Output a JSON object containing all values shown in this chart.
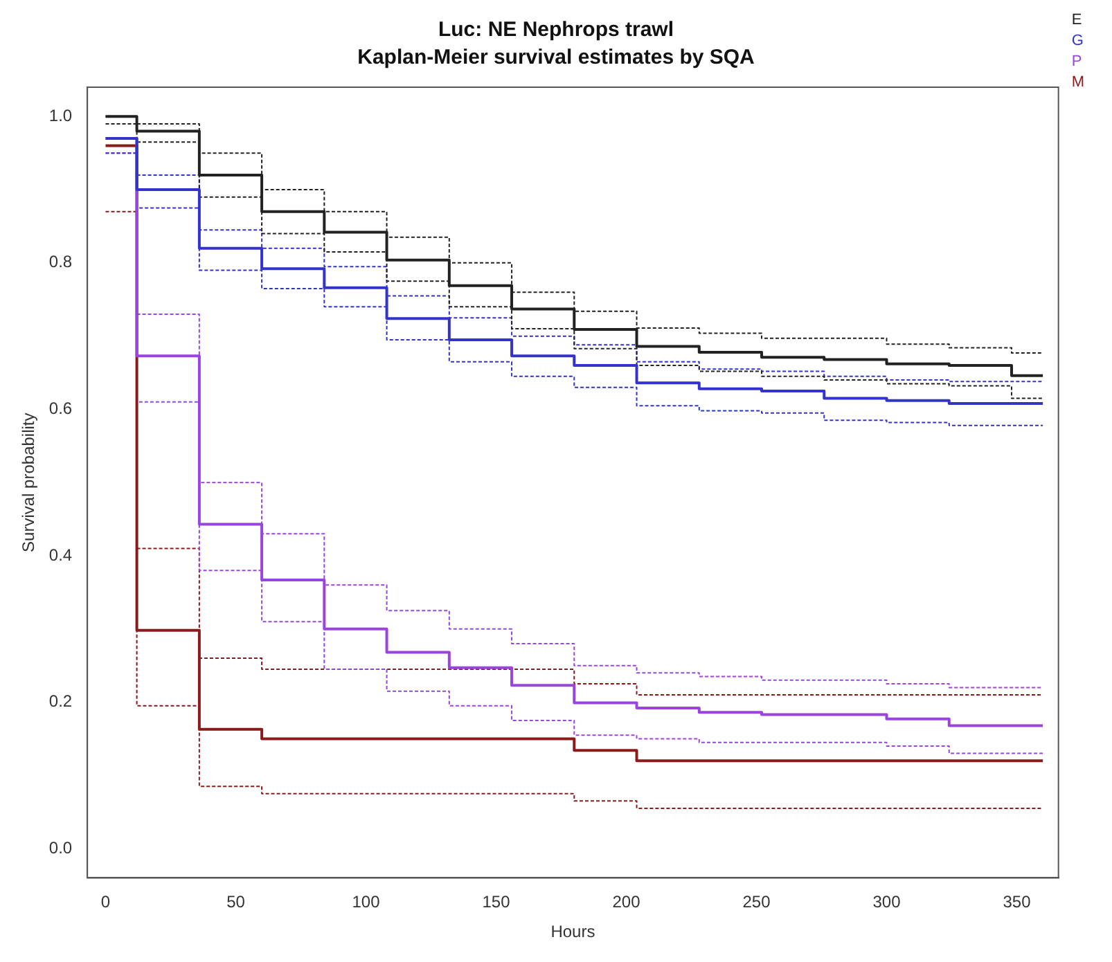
{
  "chart_data": {
    "type": "step",
    "title": "Luc: NE Nephrops trawl",
    "subtitle": "Kaplan-Meier survival estimates by SQA",
    "xlabel": "Hours",
    "ylabel": "Survival probability",
    "x": [
      0,
      12,
      36,
      60,
      84,
      108,
      132,
      156,
      180,
      204,
      228,
      252,
      276,
      300,
      324,
      348,
      360
    ],
    "xlim": [
      -7,
      366
    ],
    "xticks": [
      0,
      50,
      100,
      150,
      200,
      250,
      300,
      350
    ],
    "ylim": [
      -0.04,
      1.04
    ],
    "yticks": [
      {
        "value": 0,
        "label": "0.0"
      },
      {
        "value": 0.2,
        "label": "0.2"
      },
      {
        "value": 0.4,
        "label": "0.4"
      },
      {
        "value": 0.6,
        "label": "0.6"
      },
      {
        "value": 0.8,
        "label": "0.8"
      },
      {
        "value": 1,
        "label": "1.0"
      }
    ],
    "legend": "top right",
    "grid": false,
    "series": [
      {
        "name": "E",
        "color": "#222222",
        "values": [
          1.0,
          0.98,
          0.92,
          0.87,
          0.842,
          0.804,
          0.769,
          0.737,
          0.709,
          0.686,
          0.678,
          0.671,
          0.668,
          0.662,
          0.66,
          0.646,
          0.646
        ]
      },
      {
        "name": "G",
        "color": "#3333cc",
        "values": [
          0.97,
          0.9,
          0.82,
          0.792,
          0.766,
          0.724,
          0.695,
          0.673,
          0.66,
          0.636,
          0.628,
          0.625,
          0.615,
          0.612,
          0.608,
          0.608,
          0.608
        ]
      },
      {
        "name": "P",
        "color": "#9944dd",
        "values": [
          0.97,
          0.673,
          0.443,
          0.367,
          0.3,
          0.268,
          0.247,
          0.223,
          0.199,
          0.192,
          0.186,
          0.183,
          0.183,
          0.177,
          0.168,
          0.168,
          0.168
        ]
      },
      {
        "name": "M",
        "color": "#8b1a1a",
        "values": [
          0.96,
          0.298,
          0.163,
          0.15,
          0.15,
          0.15,
          0.15,
          0.15,
          0.134,
          0.12,
          0.12,
          0.12,
          0.12,
          0.12,
          0.12,
          0.12,
          0.12
        ]
      },
      {
        "color": "#222222",
        "line_style": "dashed",
        "values": [
          1.0,
          0.99,
          0.95,
          0.9,
          0.87,
          0.835,
          0.8,
          0.76,
          0.734,
          0.711,
          0.704,
          0.697,
          0.697,
          0.689,
          0.684,
          0.677,
          0.677
        ]
      },
      {
        "color": "#222222",
        "line_style": "dashed",
        "values": [
          0.99,
          0.965,
          0.89,
          0.84,
          0.815,
          0.775,
          0.74,
          0.71,
          0.683,
          0.66,
          0.652,
          0.645,
          0.64,
          0.635,
          0.632,
          0.615,
          0.615
        ]
      },
      {
        "color": "#3333cc",
        "line_style": "dashed",
        "values": [
          null,
          0.92,
          0.845,
          0.82,
          0.795,
          0.755,
          0.725,
          0.7,
          0.688,
          0.665,
          0.655,
          0.652,
          0.645,
          0.64,
          0.638,
          0.638,
          0.638
        ]
      },
      {
        "color": "#3333cc",
        "line_style": "dashed",
        "values": [
          0.95,
          0.875,
          0.79,
          0.765,
          0.74,
          0.695,
          0.665,
          0.645,
          0.63,
          0.605,
          0.598,
          0.595,
          0.585,
          0.582,
          0.578,
          0.578,
          0.578
        ]
      },
      {
        "color": "#9944dd",
        "line_style": "dashed",
        "values": [
          null,
          0.73,
          0.5,
          0.43,
          0.36,
          0.325,
          0.3,
          0.28,
          0.25,
          0.24,
          0.235,
          0.23,
          0.23,
          0.225,
          0.22,
          0.22,
          0.22
        ]
      },
      {
        "color": "#9944dd",
        "line_style": "dashed",
        "values": [
          0.95,
          0.61,
          0.38,
          0.31,
          0.245,
          0.215,
          0.195,
          0.175,
          0.155,
          0.15,
          0.145,
          0.145,
          0.145,
          0.14,
          0.13,
          0.13,
          0.13
        ]
      },
      {
        "color": "#8b1a1a",
        "line_style": "dashed",
        "values": [
          null,
          0.41,
          0.26,
          0.245,
          0.245,
          0.245,
          0.245,
          0.245,
          0.225,
          0.21,
          0.21,
          0.21,
          0.21,
          0.21,
          0.21,
          0.21,
          0.21
        ]
      },
      {
        "color": "#8b1a1a",
        "line_style": "dashed",
        "values": [
          0.87,
          0.195,
          0.085,
          0.075,
          0.075,
          0.075,
          0.075,
          0.075,
          0.065,
          0.055,
          0.055,
          0.055,
          0.055,
          0.055,
          0.055,
          0.055,
          0.055
        ]
      }
    ]
  }
}
